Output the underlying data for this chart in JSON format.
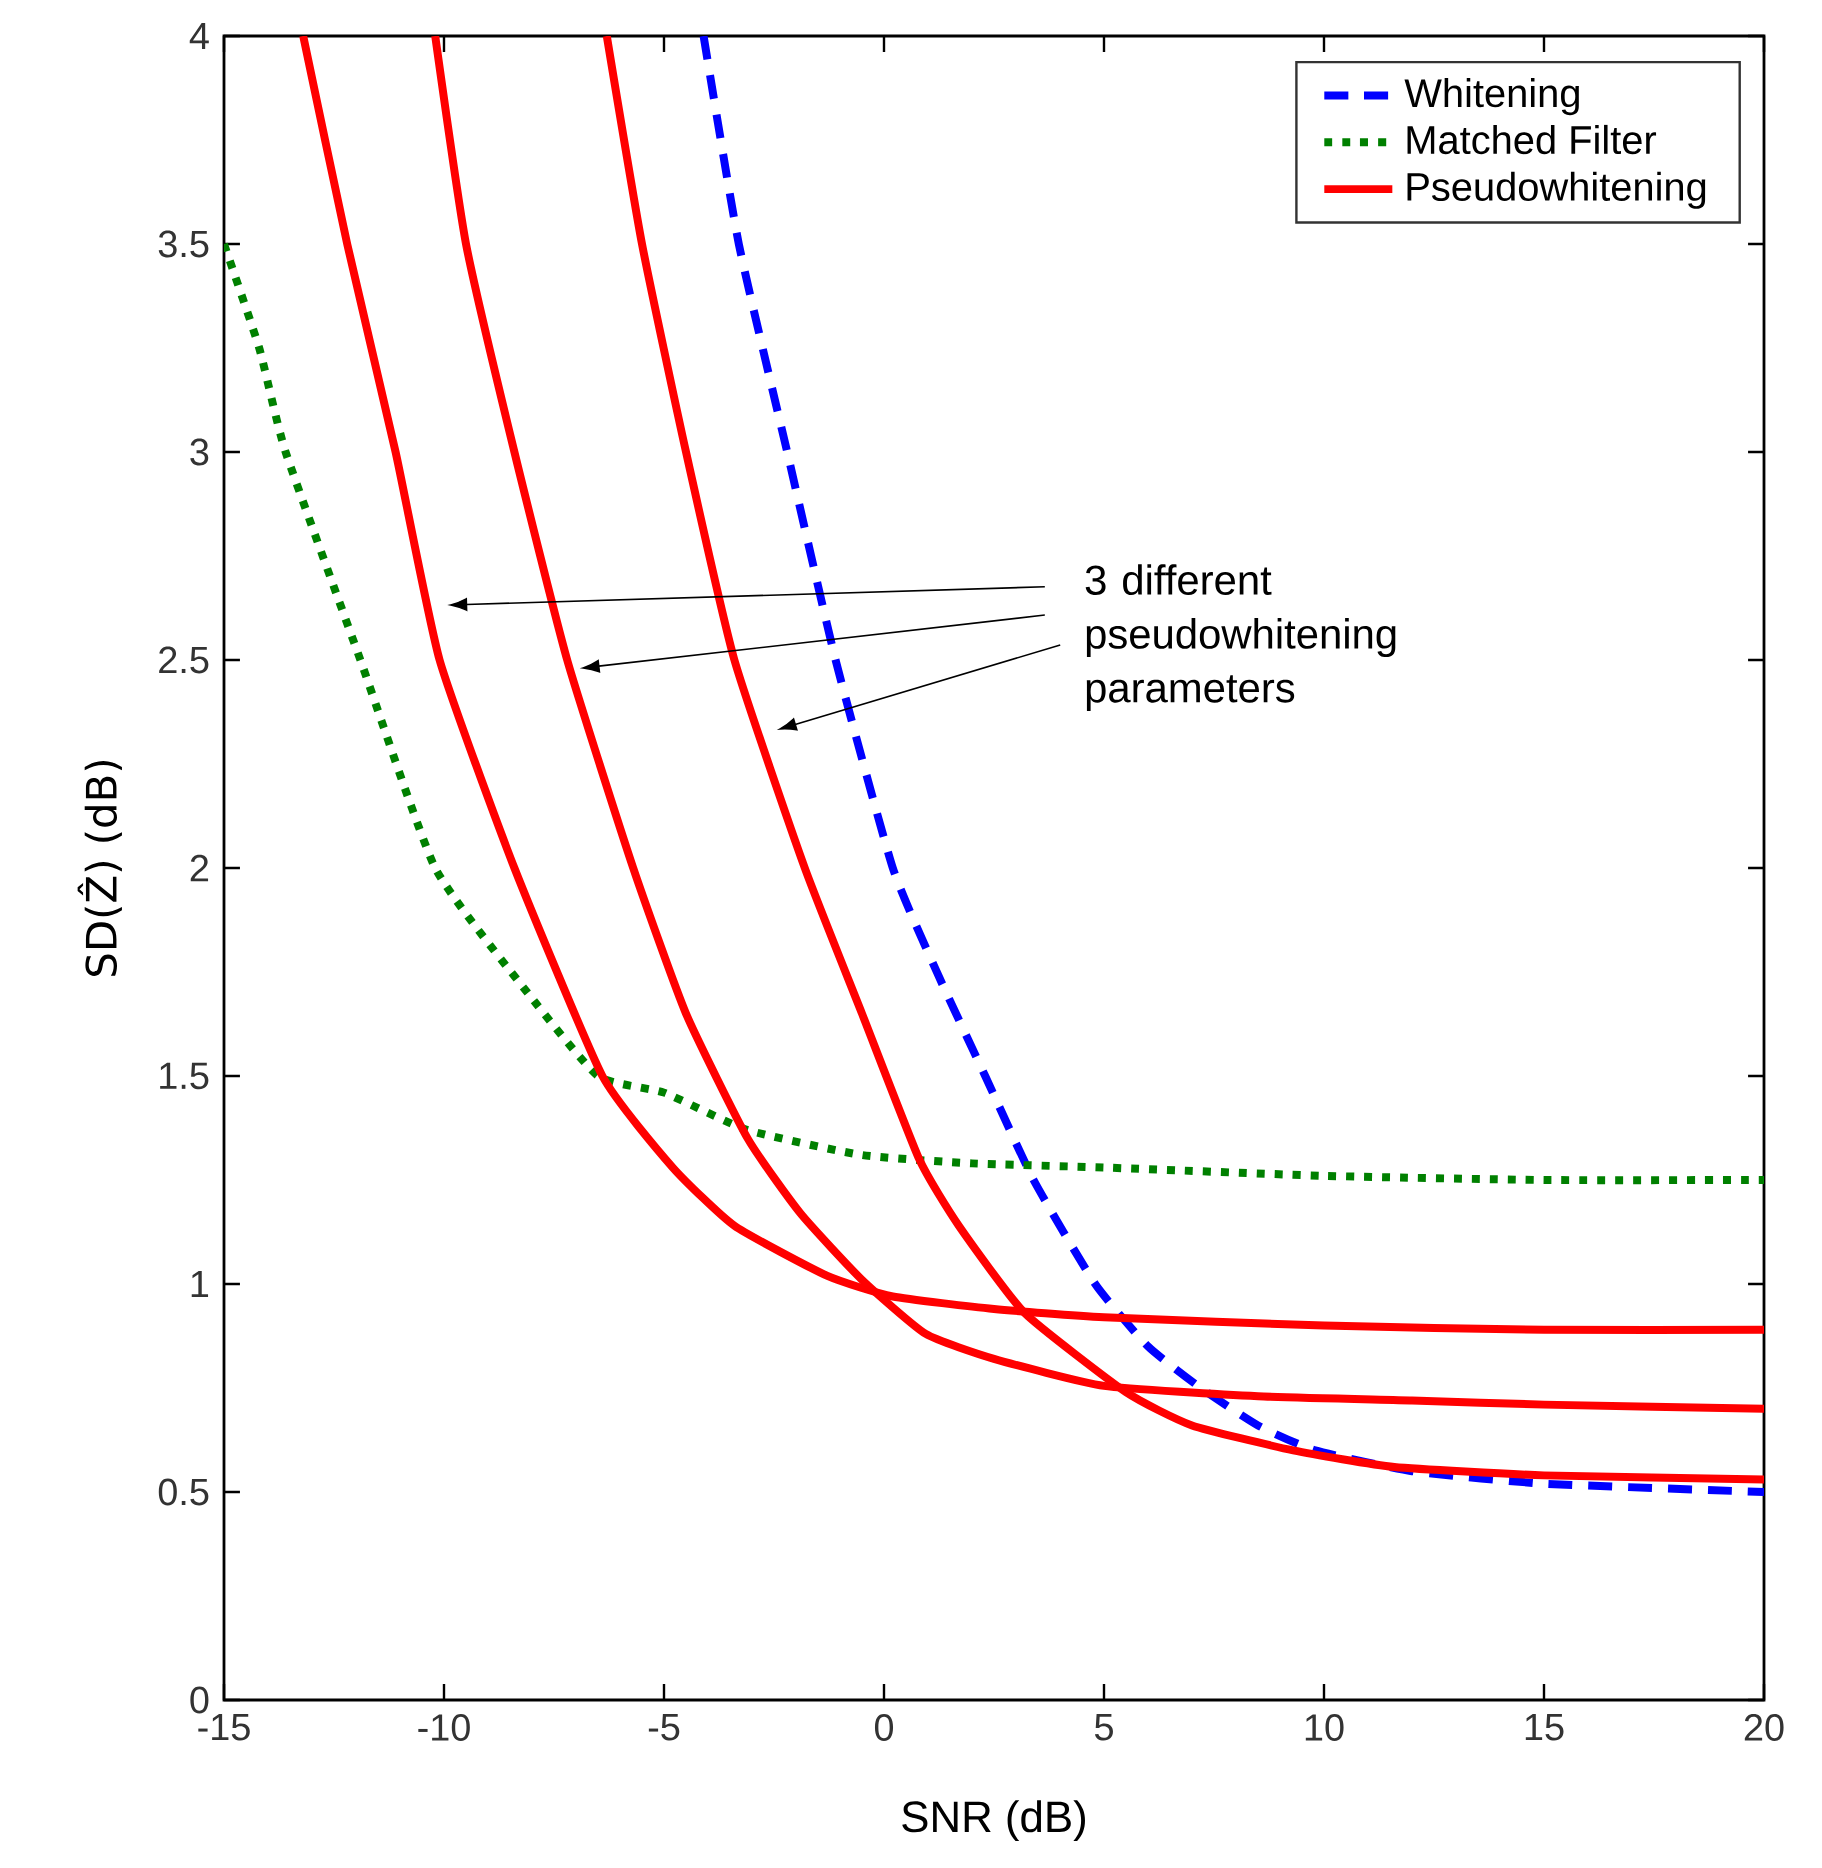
{
  "chart_data": {
    "type": "line",
    "xlabel": "SNR (dB)",
    "ylabel": "SD(Ẑ)  (dB)",
    "xlim": [
      -15,
      20
    ],
    "ylim": [
      0,
      4
    ],
    "xticks": [
      -15,
      -10,
      -5,
      0,
      5,
      10,
      15,
      20
    ],
    "yticks": [
      0,
      0.5,
      1,
      1.5,
      2,
      2.5,
      3,
      3.5,
      4
    ],
    "legend": "top right",
    "grid": false,
    "annotations": [
      "3 different pseudowhitening parameters"
    ],
    "series": [
      {
        "name": "Whitening",
        "color": "#0000ff",
        "line_style": "dashed",
        "x": [
          -4.1,
          -3.3,
          -2.2,
          -1.1,
          0.2,
          1.2,
          2.3,
          3.4,
          4.8,
          6,
          7.2,
          8.5,
          9.8,
          12,
          15,
          20
        ],
        "values": [
          4,
          3.5,
          3,
          2.5,
          2,
          1.75,
          1.5,
          1.25,
          1,
          0.85,
          0.75,
          0.66,
          0.6,
          0.55,
          0.52,
          0.5
        ]
      },
      {
        "name": "Matched Filter",
        "color": "#008000",
        "line_style": "dotted",
        "x": [
          -15,
          -14.2,
          -13.6,
          -11.9,
          -10.2,
          -8.1,
          -6.5,
          -5,
          -3.1,
          -0.5,
          2,
          5,
          10,
          15,
          20
        ],
        "values": [
          3.5,
          3.25,
          3,
          2.5,
          2,
          1.7,
          1.5,
          1.46,
          1.37,
          1.31,
          1.29,
          1.28,
          1.26,
          1.25,
          1.25
        ]
      },
      {
        "name": "Pseudowhitening",
        "color": "#ff0000",
        "line_style": "solid",
        "x": [
          -13.2,
          -12.2,
          -11.1,
          -10.1,
          -8.4,
          -6.4,
          -4.8,
          -3.4,
          -1.3,
          0.2,
          2.5,
          5,
          10,
          15,
          20
        ],
        "values": [
          4,
          3.5,
          3,
          2.5,
          2,
          1.5,
          1.28,
          1.14,
          1.02,
          0.97,
          0.94,
          0.92,
          0.9,
          0.89,
          0.89
        ]
      },
      {
        "color": "#ff0000",
        "line_style": "solid",
        "x": [
          -10.2,
          -9.5,
          -8.4,
          -7.2,
          -5.7,
          -4.5,
          -3.1,
          -1.9,
          -0.5,
          0.95,
          2.5,
          5,
          8.5,
          12,
          15,
          20
        ],
        "values": [
          4,
          3.5,
          3,
          2.5,
          2,
          1.65,
          1.35,
          1.17,
          1.01,
          0.88,
          0.82,
          0.755,
          0.73,
          0.72,
          0.71,
          0.7
        ]
      },
      {
        "color": "#ff0000",
        "line_style": "solid",
        "x": [
          -6.3,
          -5.5,
          -4.5,
          -3.4,
          -1.8,
          -0.5,
          0.8,
          1.7,
          3.2,
          5.5,
          7,
          9.3,
          11.6,
          15,
          20
        ],
        "values": [
          4,
          3.5,
          3,
          2.5,
          2,
          1.65,
          1.3,
          1.14,
          0.93,
          0.74,
          0.66,
          0.6,
          0.56,
          0.54,
          0.53
        ]
      }
    ]
  }
}
